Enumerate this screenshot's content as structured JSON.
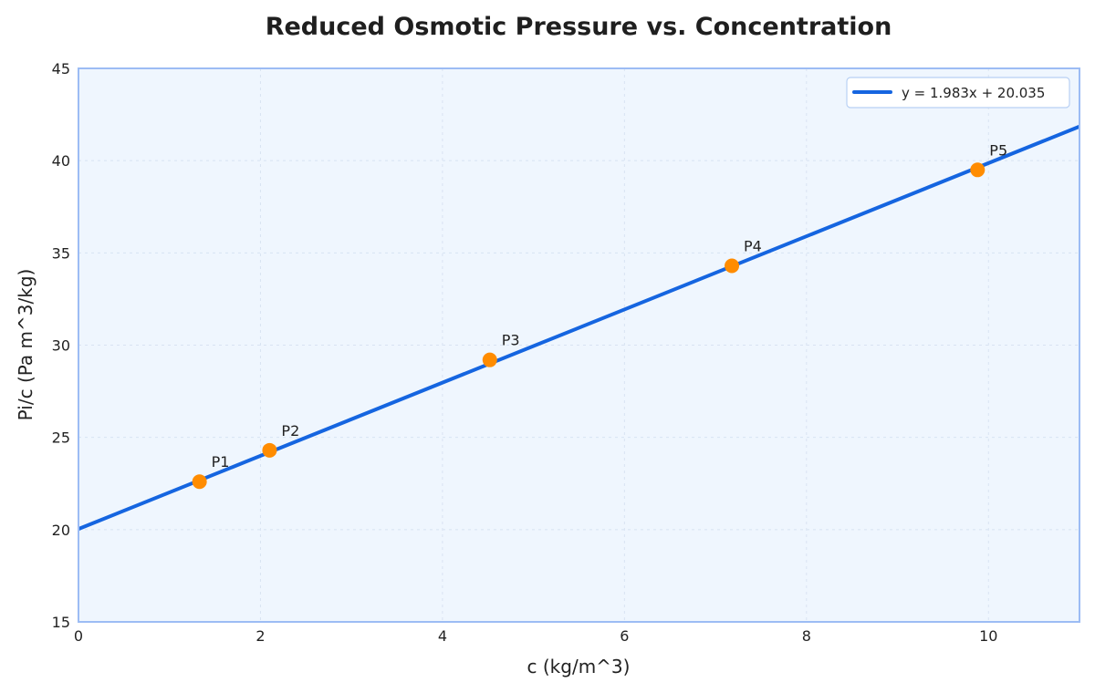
{
  "chart_data": {
    "type": "scatter",
    "title": "Reduced Osmotic Pressure vs. Concentration",
    "xlabel": "c (kg/m^3)",
    "ylabel": "Pi/c (Pa m^3/kg)",
    "xlim": [
      0,
      11
    ],
    "ylim": [
      15,
      45
    ],
    "x_ticks": [
      0,
      2,
      4,
      6,
      8,
      10
    ],
    "y_ticks": [
      15,
      20,
      25,
      30,
      35,
      40,
      45
    ],
    "grid": true,
    "legend_position": "top-right",
    "points": [
      {
        "label": "P1",
        "x": 1.33,
        "y": 22.6
      },
      {
        "label": "P2",
        "x": 2.1,
        "y": 24.3
      },
      {
        "label": "P3",
        "x": 4.52,
        "y": 29.2
      },
      {
        "label": "P4",
        "x": 7.18,
        "y": 34.3
      },
      {
        "label": "P5",
        "x": 9.88,
        "y": 39.5
      }
    ],
    "fit_line": {
      "name": "y = 1.983x + 20.035",
      "slope": 1.983,
      "intercept": 20.035
    },
    "colors": {
      "line": "#1565e0",
      "points": "#ff8c00",
      "plot_background": "#eff6fe",
      "axes_border": "#9cbcf4",
      "grid": "#d8e3f2"
    }
  }
}
